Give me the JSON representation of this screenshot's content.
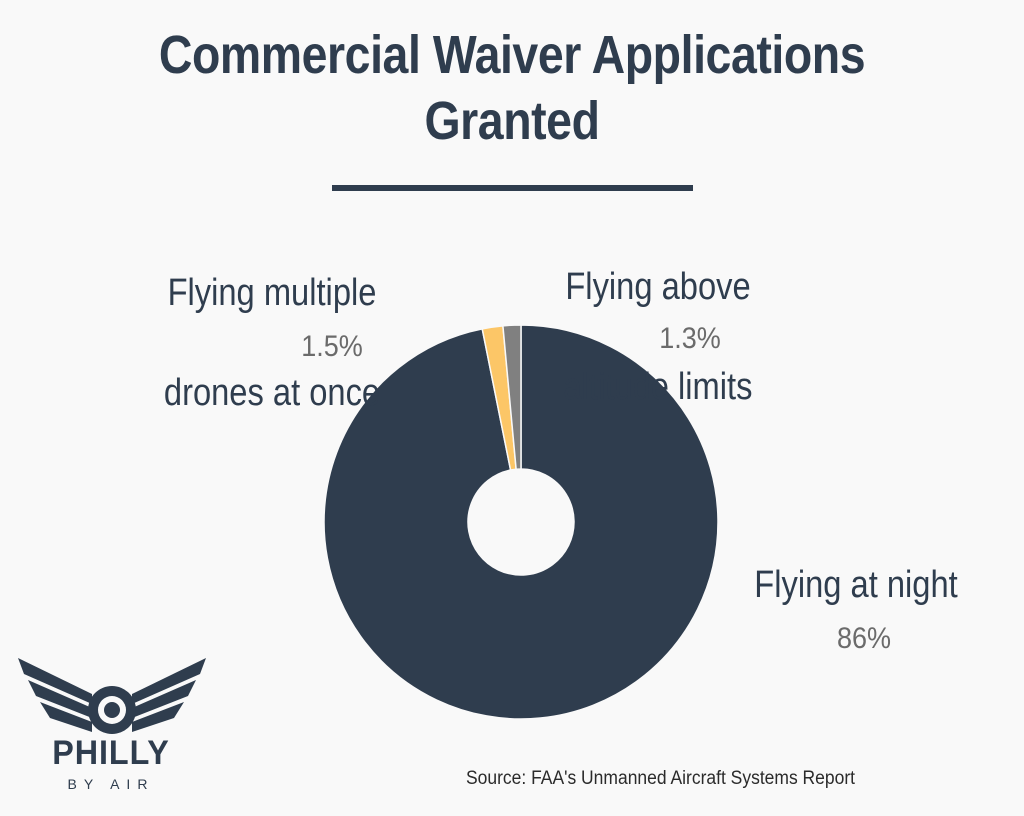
{
  "header": {
    "title": "Commercial Waiver Applications\nGranted"
  },
  "chart_data": {
    "type": "pie",
    "title": "Commercial Waiver Applications Granted",
    "donut": true,
    "categories": [
      "Flying at night",
      "Flying multiple drones at once",
      "Flying above altitude limits"
    ],
    "values": [
      86,
      1.5,
      1.3
    ],
    "value_labels": [
      "86%",
      "1.5%",
      "1.3%"
    ],
    "label_lines": [
      [
        "Flying at night"
      ],
      [
        "Flying multiple",
        "drones at once"
      ],
      [
        "Flying above",
        "altitude limits"
      ]
    ],
    "colors": [
      "#2f3d4e",
      "#fcc667",
      "#808080"
    ],
    "legend": "none"
  },
  "footer": {
    "source": "Source: FAA's Unmanned Aircraft Systems Report"
  },
  "logo": {
    "name": "PHILLY",
    "tagline": "BY AIR",
    "icon": "winged-drone-icon"
  }
}
